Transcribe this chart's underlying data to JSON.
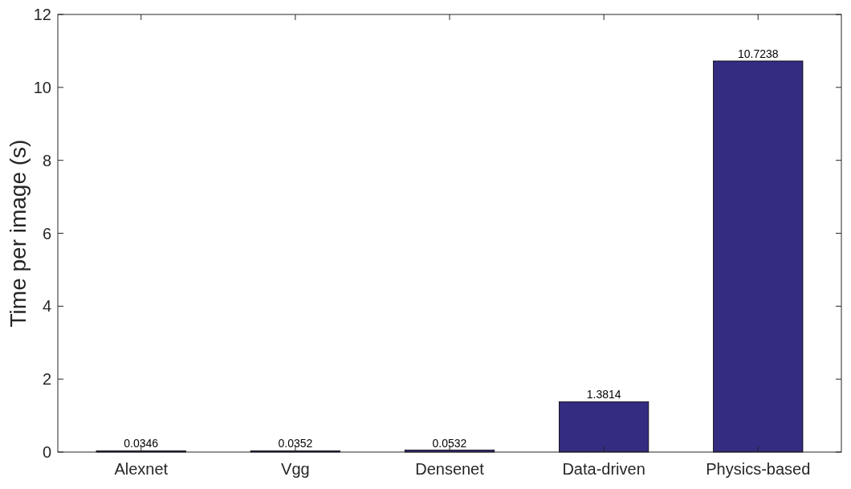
{
  "chart_data": {
    "type": "bar",
    "ylabel": "Time per image (s)",
    "categories": [
      "Alexnet",
      "Vgg",
      "Densenet",
      "Data-driven",
      "Physics-based"
    ],
    "values": [
      0.0346,
      0.0352,
      0.0532,
      1.3814,
      10.7238
    ],
    "color": "#332c80",
    "ylim": [
      0,
      12
    ],
    "yticks": [
      0,
      2,
      4,
      6,
      8,
      10,
      12
    ],
    "grid": false,
    "data_labels": true
  }
}
